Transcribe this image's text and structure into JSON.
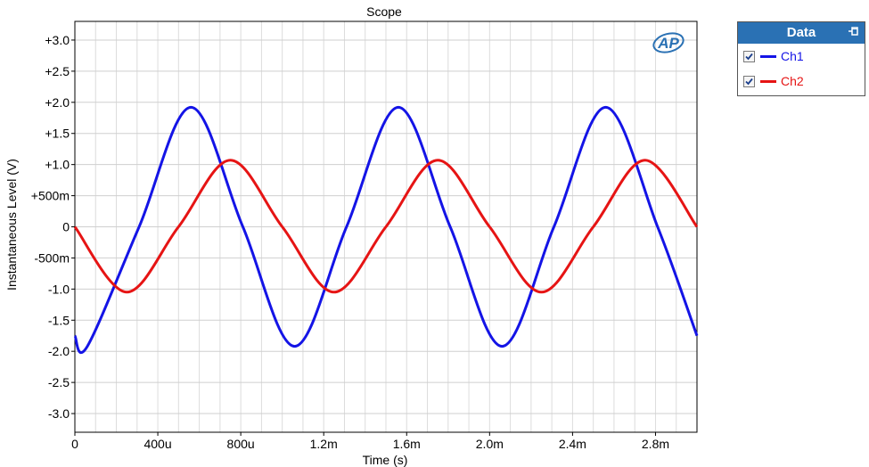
{
  "colors": {
    "ch1": "#1414e6",
    "ch2": "#e61414",
    "legend_header": "#2a71b4",
    "logo": "#2a71b4"
  },
  "legend": {
    "title": "Data",
    "items": [
      {
        "label": "Ch1",
        "checked": true,
        "color": "#1414e6"
      },
      {
        "label": "Ch2",
        "checked": true,
        "color": "#e61414"
      }
    ]
  },
  "logo_text": "AP",
  "chart_data": {
    "type": "line",
    "title": "Scope",
    "xlabel": "Time (s)",
    "ylabel": "Instantaneous Level (V)",
    "xlim": [
      0,
      0.003
    ],
    "ylim": [
      -3.3,
      3.3
    ],
    "grid": true,
    "legend_position": "outside-right",
    "x_ticks": [
      0,
      0.0004,
      0.0008,
      0.0012,
      0.0016,
      0.002,
      0.0024,
      0.0028
    ],
    "x_tick_labels": [
      "0",
      "400u",
      "800u",
      "1.2m",
      "1.6m",
      "2.0m",
      "2.4m",
      "2.8m"
    ],
    "y_ticks": [
      3.0,
      2.5,
      2.0,
      1.5,
      1.0,
      0.5,
      0,
      -0.5,
      -1.0,
      -1.5,
      -2.0,
      -2.5,
      -3.0
    ],
    "y_tick_labels": [
      "+3.0",
      "+2.5",
      "+2.0",
      "+1.5",
      "+1.0",
      "+500m",
      "0",
      "-500m",
      "-1.0",
      "-1.5",
      "-2.0",
      "-2.5",
      "-3.0"
    ],
    "series": [
      {
        "name": "Ch1",
        "x": [
          0,
          6e-05,
          0.00031,
          0.00056,
          0.00081,
          0.00106,
          0.00131,
          0.00156,
          0.00181,
          0.00206,
          0.00231,
          0.00256,
          0.00281,
          0.003
        ],
        "y": [
          -1.75,
          -1.92,
          0.0,
          1.92,
          0.0,
          -1.92,
          0.0,
          1.92,
          0.0,
          -1.92,
          0.0,
          1.92,
          0.0,
          -1.75
        ]
      },
      {
        "name": "Ch2",
        "x": [
          0,
          0.00025,
          0.0005,
          0.00075,
          0.001,
          0.00125,
          0.0015,
          0.00175,
          0.002,
          0.00225,
          0.0025,
          0.00275,
          0.003
        ],
        "y": [
          0.0,
          -1.05,
          0.0,
          1.07,
          0.0,
          -1.05,
          0.0,
          1.07,
          0.0,
          -1.05,
          0.0,
          1.07,
          0.0
        ]
      }
    ]
  }
}
